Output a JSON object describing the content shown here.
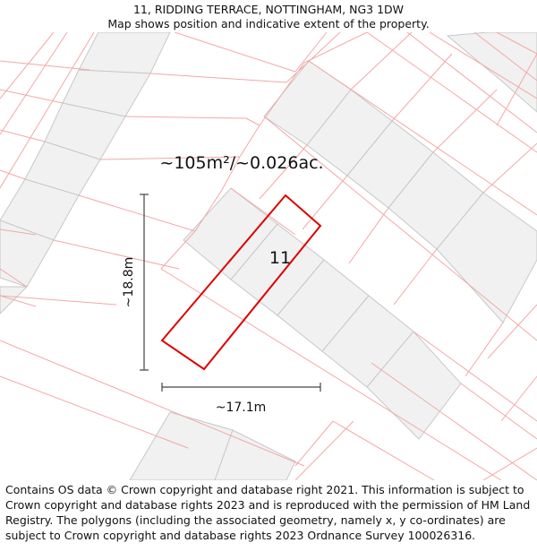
{
  "header": {
    "address": "11, RIDDING TERRACE, NOTTINGHAM, NG3 1DW",
    "subtitle": "Map shows position and indicative extent of the property."
  },
  "map": {
    "area_label": "~105m²/~0.026ac.",
    "plot_number": "11",
    "height_measure": "~18.8m",
    "width_measure": "~17.1m",
    "colors": {
      "plot_outline": "#dd0000",
      "parcel_lines": "#f2a8a8",
      "building_fill": "#f1f1f1",
      "building_stroke": "#c8c8c8",
      "measure_line": "#444444"
    }
  },
  "footer": {
    "copyright": "Contains OS data © Crown copyright and database right 2021. This information is subject to Crown copyright and database rights 2023 and is reproduced with the permission of HM Land Registry. The polygons (including the associated geometry, namely x, y co-ordinates) are subject to Crown copyright and database rights 2023 Ordnance Survey 100026316."
  }
}
